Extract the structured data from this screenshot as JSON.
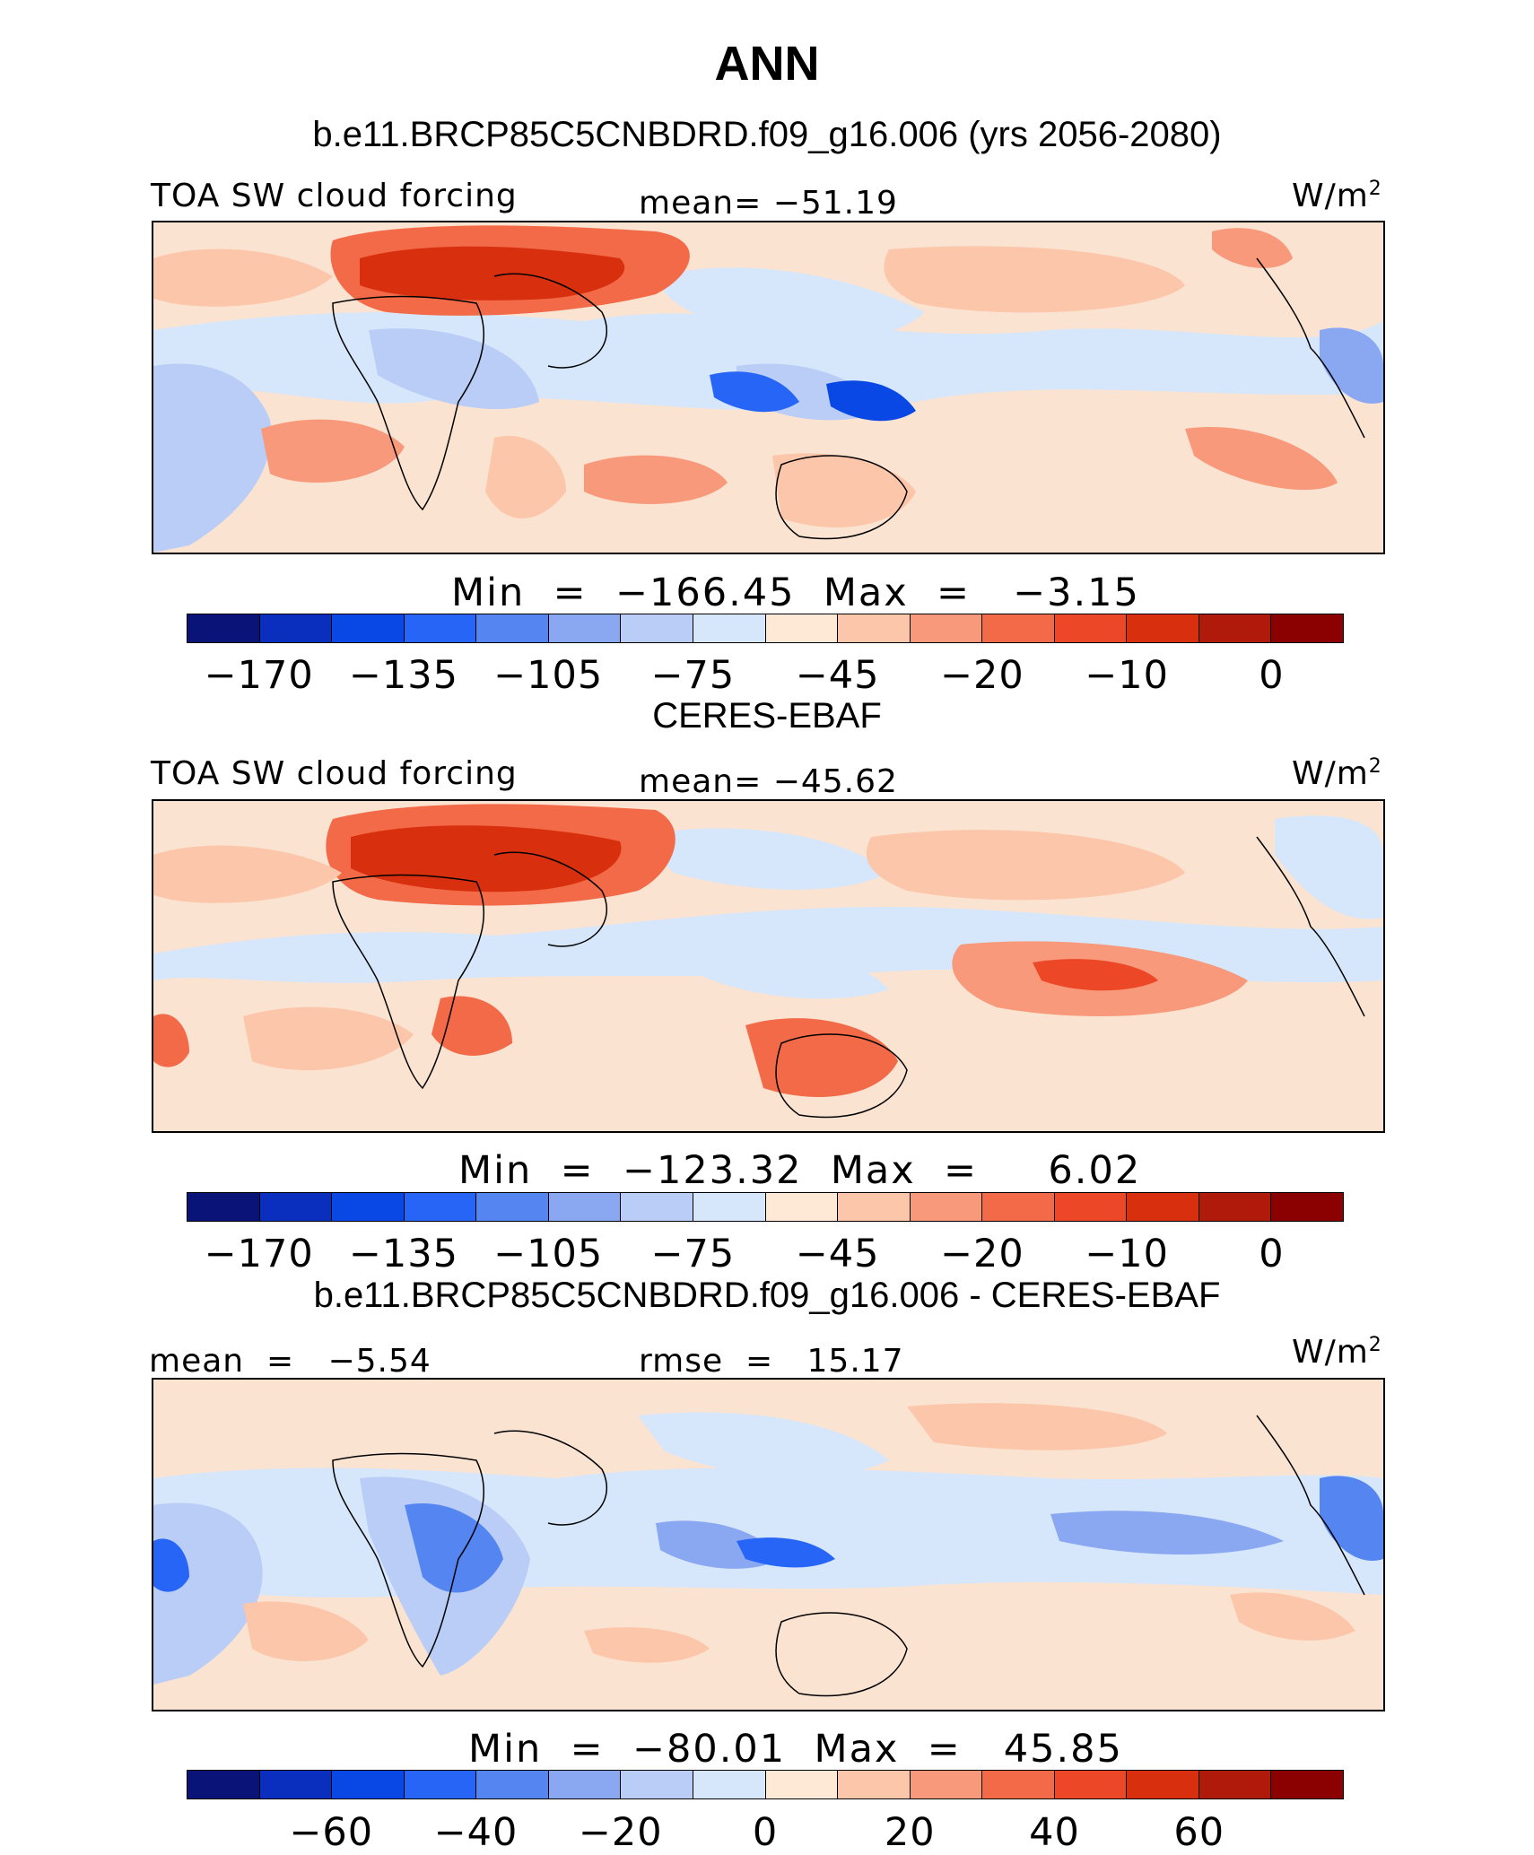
{
  "title": "ANN",
  "colors": {
    "palette": [
      "#0a1478",
      "#0a2fbe",
      "#0a48e6",
      "#2665f5",
      "#5585f0",
      "#8aa8f2",
      "#b9cdf6",
      "#d6e6fb",
      "#fee8d6",
      "#fcc6aa",
      "#f7997a",
      "#f26a47",
      "#ec4727",
      "#d8300f",
      "#b01a0a",
      "#8b0000"
    ],
    "map_bg": "#fbe7d8",
    "land_outline": "#000000"
  },
  "panels": [
    {
      "header": "b.e11.BRCP85C5CNBDRD.f09_g16.006 (yrs 2056-2080)",
      "left_label": "TOA SW cloud forcing",
      "center_label": "mean= −51.19",
      "units": "W/m",
      "units_sup": "2",
      "stats": "Min  =  −166.45  Max  =   −3.15",
      "ticks": [
        "−170",
        "−135",
        "−105",
        "−75",
        "−45",
        "−20",
        "−10",
        "0"
      ]
    },
    {
      "header": "CERES-EBAF",
      "left_label": "TOA SW cloud forcing",
      "center_label": "mean= −45.62",
      "units": "W/m",
      "units_sup": "2",
      "stats": "Min  =  −123.32  Max  =     6.02",
      "ticks": [
        "−170",
        "−135",
        "−105",
        "−75",
        "−45",
        "−20",
        "−10",
        "0"
      ]
    },
    {
      "header": "b.e11.BRCP85C5CNBDRD.f09_g16.006 - CERES-EBAF",
      "left_label": "mean  =   −5.54",
      "center_label": "rmse  =   15.17",
      "units": "W/m",
      "units_sup": "2",
      "stats": "Min  =  −80.01  Max  =   45.85",
      "ticks": [
        "−60",
        "−40",
        "−20",
        "0",
        "20",
        "40",
        "60"
      ]
    }
  ],
  "chart_data": [
    {
      "type": "heatmap",
      "title": "TOA SW cloud forcing",
      "subtitle": "b.e11.BRCP85C5CNBDRD.f09_g16.006 (yrs 2056-2080)",
      "units": "W/m2",
      "mean": -51.19,
      "min": -166.45,
      "max": -3.15,
      "colorbar_ticks": [
        -170,
        -135,
        -105,
        -75,
        -45,
        -20,
        -10,
        0
      ]
    },
    {
      "type": "heatmap",
      "title": "TOA SW cloud forcing",
      "subtitle": "CERES-EBAF",
      "units": "W/m2",
      "mean": -45.62,
      "min": -123.32,
      "max": 6.02,
      "colorbar_ticks": [
        -170,
        -135,
        -105,
        -75,
        -45,
        -20,
        -10,
        0
      ]
    },
    {
      "type": "heatmap",
      "title": "b.e11.BRCP85C5CNBDRD.f09_g16.006 - CERES-EBAF",
      "units": "W/m2",
      "mean": -5.54,
      "rmse": 15.17,
      "min": -80.01,
      "max": 45.85,
      "colorbar_ticks": [
        -60,
        -40,
        -20,
        0,
        20,
        40,
        60
      ]
    }
  ]
}
